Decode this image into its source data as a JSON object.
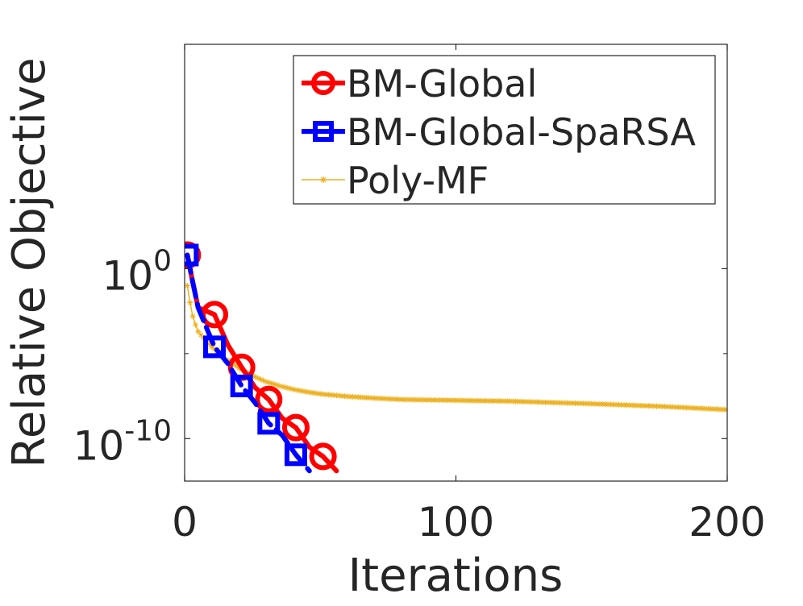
{
  "chart_data": {
    "type": "line",
    "title": "",
    "xlabel": "Iterations",
    "ylabel": "Relative Objective",
    "xlim": [
      0,
      200
    ],
    "ylim_log10": [
      -12,
      2
    ],
    "y_scale": "log",
    "grid": false,
    "legend_position": "top-right",
    "x_ticks": [
      0,
      100,
      200
    ],
    "x_tick_labels": [
      "0",
      "100",
      "200"
    ],
    "y_ticks_log10": [
      -10,
      0
    ],
    "y_tick_labels": [
      {
        "base": "10",
        "exp": "-10"
      },
      {
        "base": "10",
        "exp": "0"
      }
    ],
    "y_minor_ticks_log10": [
      -5
    ],
    "series": [
      {
        "name": "BM-Global",
        "color": "#ff0000",
        "style": "solid",
        "marker": "circle",
        "x": [
          1,
          3,
          5,
          11,
          16,
          21,
          26,
          31,
          36,
          41,
          46,
          51,
          56
        ],
        "log10_y": [
          0.8,
          -0.8,
          -2.3,
          -2.7,
          -4.5,
          -5.8,
          -7.0,
          -7.7,
          -8.8,
          -9.35,
          -10.5,
          -11.05,
          -11.9
        ],
        "marker_x": [
          1,
          11,
          21,
          31,
          41,
          51
        ],
        "marker_log10_y": [
          0.8,
          -2.7,
          -5.8,
          -7.7,
          -9.35,
          -11.05
        ]
      },
      {
        "name": "BM-Global-SpaRSA",
        "color": "#0000ff",
        "style": "dashed",
        "marker": "square",
        "x": [
          1,
          3,
          5,
          11,
          16,
          21,
          26,
          31,
          36,
          41,
          46
        ],
        "log10_y": [
          0.8,
          -0.8,
          -2.3,
          -4.6,
          -5.6,
          -6.9,
          -7.9,
          -9.1,
          -9.8,
          -10.95,
          -11.9
        ],
        "marker_x": [
          1,
          11,
          21,
          31,
          41
        ],
        "marker_log10_y": [
          0.8,
          -4.6,
          -6.9,
          -9.1,
          -10.95
        ]
      },
      {
        "name": "Poly-MF",
        "color": "#edb120",
        "style": "solid",
        "marker": "asterisk",
        "x": [
          1,
          2,
          3,
          4,
          5,
          7,
          10,
          13,
          15,
          18,
          20,
          25,
          30,
          35,
          40,
          45,
          50,
          60,
          70,
          80,
          100,
          120,
          150,
          175,
          200
        ],
        "log10_y": [
          -1.0,
          -2.0,
          -2.8,
          -3.3,
          -3.7,
          -4.1,
          -4.6,
          -5.0,
          -5.3,
          -5.6,
          -5.85,
          -6.3,
          -6.65,
          -6.9,
          -7.1,
          -7.25,
          -7.37,
          -7.52,
          -7.62,
          -7.7,
          -7.75,
          -7.8,
          -7.95,
          -8.1,
          -8.3
        ]
      }
    ]
  }
}
